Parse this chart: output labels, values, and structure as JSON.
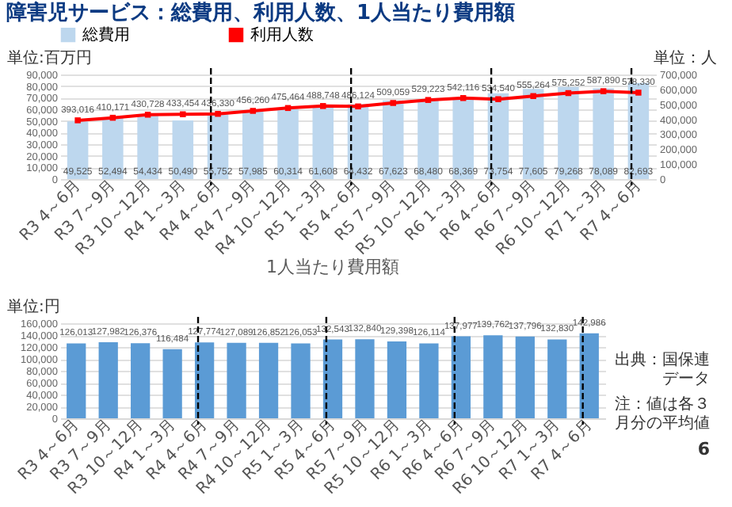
{
  "chart_data": [
    {
      "type": "bar",
      "title": "障害児サービス：総費用、利用人数、1人当たり費用額",
      "categories": [
        "R3 4～6月",
        "R3 7～9月",
        "R3 10～12月",
        "R4 1～3月",
        "R4 4～6月",
        "R4 7～9月",
        "R4 10～12月",
        "R5 1～3月",
        "R5 4～6月",
        "R5 7～9月",
        "R5 10～12月",
        "R6 1～3月",
        "R6 4～6月",
        "R6 7～9月",
        "R6 10～12月",
        "R7 1～3月",
        "R7 4～6月"
      ],
      "series": [
        {
          "name": "総費用",
          "color": "#bdd7ee",
          "values": [
            49525,
            52494,
            54434,
            50490,
            55752,
            57985,
            60314,
            61608,
            64432,
            67623,
            68480,
            68369,
            73754,
            77605,
            79268,
            78089,
            82693
          ],
          "value_labels": [
            "49,525",
            "52,494",
            "54,434",
            "50,490",
            "55,752",
            "57,985",
            "60,314",
            "61,608",
            "64,432",
            "67,623",
            "68,480",
            "68,369",
            "73,754",
            "77,605",
            "79,268",
            "78,089",
            "82,693"
          ]
        },
        {
          "name": "利用人数",
          "type": "line",
          "axis": "y2",
          "color": "#ff0000",
          "values": [
            393016,
            410171,
            430728,
            433454,
            436330,
            456260,
            475464,
            488748,
            486124,
            509059,
            529223,
            542116,
            534540,
            555264,
            575252,
            587890,
            578330
          ],
          "value_labels": [
            "393,016",
            "410,171",
            "430,728",
            "433,454",
            "436,330",
            "456,260",
            "475,464",
            "488,748",
            "486,124",
            "509,059",
            "529,223",
            "542,116",
            "534,540",
            "555,264",
            "575,252",
            "587,890",
            "578,330"
          ]
        }
      ],
      "ylabel": "単位:百万円",
      "y2label": "単位：人",
      "ylim": [
        0,
        90000
      ],
      "yticks": [
        0,
        {
          "value": 10000,
          "label": "10,000"
        },
        {
          "value": 20000,
          "label": "20,000"
        },
        {
          "value": 30000,
          "label": "30,000"
        },
        {
          "value": 40000,
          "label": "40,000"
        },
        {
          "value": 50000,
          "label": "50,000"
        },
        {
          "value": 60000,
          "label": "60,000"
        },
        {
          "value": 70000,
          "label": "70,000"
        },
        {
          "value": 80000,
          "label": "80,000"
        },
        {
          "value": 90000,
          "label": "90,000"
        }
      ],
      "y2lim": [
        0,
        700000
      ],
      "y2ticks": [
        0,
        {
          "value": 100000,
          "label": "100,000"
        },
        {
          "value": 200000,
          "label": "200,000"
        },
        {
          "value": 300000,
          "label": "300,000"
        },
        {
          "value": 400000,
          "label": "400,000"
        },
        {
          "value": 500000,
          "label": "500,000"
        },
        {
          "value": 600000,
          "label": "600,000"
        },
        {
          "value": 700000,
          "label": "700,000"
        }
      ],
      "ref_lines": [
        {
          "axis": "x",
          "value": "R4 4～6月",
          "color": "#000000",
          "line_style": "dashed"
        },
        {
          "axis": "x",
          "value": "R5 4～6月",
          "color": "#000000",
          "line_style": "dashed"
        },
        {
          "axis": "x",
          "value": "R6 4～6月",
          "color": "#000000",
          "line_style": "dashed"
        },
        {
          "axis": "x",
          "value": "R7 4～6月",
          "color": "#000000",
          "line_style": "dashed"
        }
      ],
      "grid": "y",
      "legend": "top",
      "marker": "square",
      "line_style": "solid"
    },
    {
      "type": "bar",
      "title": "1人当たり費用額",
      "categories": [
        "R3 4～6月",
        "R3 7～9月",
        "R3 10～12月",
        "R4 1～3月",
        "R4 4～6月",
        "R4 7～9月",
        "R4 10～12月",
        "R5 1～3月",
        "R5 4～6月",
        "R5 7～9月",
        "R5 10～12月",
        "R6 1～3月",
        "R6 4～6月",
        "R6 7～9月",
        "R6 10～12月",
        "R7 1～3月",
        "R7 4～6月"
      ],
      "series": [
        {
          "color": "#5b9bd5",
          "values": [
            126013,
            127982,
            126376,
            116484,
            127774,
            127089,
            126852,
            126053,
            132543,
            132840,
            129398,
            126114,
            137977,
            139762,
            137796,
            132830,
            142986
          ],
          "value_labels": [
            "126,013",
            "127,982",
            "126,376",
            "116,484",
            "127,774",
            "127,089",
            "126,852",
            "126,053",
            "132,543",
            "132,840",
            "129,398",
            "126,114",
            "137,977",
            "139,762",
            "137,796",
            "132,830",
            "142,986"
          ]
        }
      ],
      "ylabel": "単位:円",
      "ylim": [
        0,
        160000
      ],
      "yticks": [
        0,
        {
          "value": 20000,
          "label": "20,000"
        },
        {
          "value": 40000,
          "label": "40,000"
        },
        {
          "value": 60000,
          "label": "60,000"
        },
        {
          "value": 80000,
          "label": "80,000"
        },
        {
          "value": 100000,
          "label": "100,000"
        },
        {
          "value": 120000,
          "label": "120,000"
        },
        {
          "value": 140000,
          "label": "140,000"
        },
        {
          "value": 160000,
          "label": "160,000"
        }
      ],
      "ref_lines": [
        {
          "axis": "x",
          "value": "R4 4～6月",
          "color": "#000000",
          "line_style": "dashed"
        },
        {
          "axis": "x",
          "value": "R5 4～6月",
          "color": "#000000",
          "line_style": "dashed"
        },
        {
          "axis": "x",
          "value": "R6 4～6月",
          "color": "#000000",
          "line_style": "dashed"
        },
        {
          "axis": "x",
          "value": "R7 4～6月",
          "color": "#000000",
          "line_style": "dashed"
        }
      ],
      "annotations": [
        "出典：国保連データ",
        "注：値は各３月分の平均値",
        "6"
      ],
      "grid": "y"
    }
  ]
}
